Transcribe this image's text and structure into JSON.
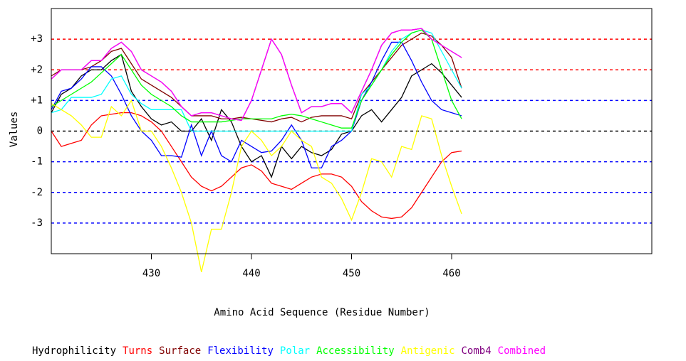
{
  "chart_data": {
    "type": "line",
    "x_label": "Amino Acid Sequence (Residue Number)",
    "y_label": "Values",
    "x": [
      420,
      421,
      422,
      423,
      424,
      425,
      426,
      427,
      428,
      429,
      430,
      431,
      432,
      433,
      434,
      435,
      436,
      437,
      438,
      439,
      440,
      441,
      442,
      443,
      444,
      445,
      446,
      447,
      448,
      449,
      450,
      451,
      452,
      453,
      454,
      455,
      456,
      457,
      458,
      459,
      460,
      461
    ],
    "xlim": [
      420,
      480
    ],
    "xticks": [
      430,
      440,
      450,
      460
    ],
    "ylim": [
      -4,
      4
    ],
    "yticks": [
      {
        "value": 3,
        "label": "+3"
      },
      {
        "value": 2,
        "label": "+2"
      },
      {
        "value": 1,
        "label": "+1"
      },
      0,
      -1,
      -2,
      -3
    ],
    "grid": true,
    "grid_colors": [
      "#ff0000",
      "#ff0000",
      "#0000ff",
      "#000000",
      "#0000ff",
      "#0000ff",
      "#0000ff"
    ],
    "series": [
      {
        "name": "Hydrophilicity",
        "color": "#000000",
        "values": [
          0.6,
          1.2,
          1.4,
          1.8,
          2.0,
          2.0,
          2.3,
          2.5,
          1.3,
          0.8,
          0.4,
          0.2,
          0.3,
          0,
          0,
          0.4,
          -0.3,
          0.7,
          0.3,
          -0.5,
          -1.0,
          -0.8,
          -1.5,
          -0.5,
          -0.9,
          -0.5,
          -0.7,
          -0.8,
          -0.6,
          -0.1,
          0,
          0.5,
          0.7,
          0.3,
          0.7,
          1.1,
          1.8,
          2.0,
          2.2,
          1.9,
          1.5,
          1.1
        ]
      },
      {
        "name": "Turns",
        "color": "#ff0000",
        "values": [
          0,
          -0.5,
          -0.4,
          -0.3,
          0.2,
          0.5,
          0.55,
          0.6,
          0.6,
          0.5,
          0.3,
          0,
          -0.5,
          -1.0,
          -1.5,
          -1.8,
          -1.95,
          -1.8,
          -1.5,
          -1.2,
          -1.1,
          -1.3,
          -1.7,
          -1.8,
          -1.9,
          -1.7,
          -1.5,
          -1.4,
          -1.4,
          -1.5,
          -1.8,
          -2.3,
          -2.6,
          -2.8,
          -2.85,
          -2.8,
          -2.5,
          -2.0,
          -1.5,
          -1.0,
          -0.7,
          -0.65
        ]
      },
      {
        "name": "Surface",
        "color": "#800000",
        "values": [
          1.8,
          2.0,
          2.0,
          2.0,
          2.1,
          2.3,
          2.6,
          2.7,
          2.2,
          1.7,
          1.5,
          1.3,
          1.1,
          0.8,
          0.5,
          0.5,
          0.5,
          0.4,
          0.4,
          0.45,
          0.4,
          0.35,
          0.3,
          0.4,
          0.45,
          0.3,
          0.45,
          0.5,
          0.5,
          0.5,
          0.4,
          1.2,
          1.6,
          2.0,
          2.4,
          2.8,
          3.0,
          3.2,
          3.1,
          2.8,
          2.4,
          1.4
        ]
      },
      {
        "name": "Flexibility",
        "color": "#0000ff",
        "values": [
          0.7,
          1.3,
          1.4,
          1.7,
          2.1,
          2.1,
          1.8,
          1.2,
          0.5,
          0,
          -0.3,
          -0.8,
          -0.8,
          -0.85,
          0.2,
          -0.8,
          0,
          -0.8,
          -1.0,
          -0.3,
          -0.5,
          -0.7,
          -0.65,
          -0.3,
          0.2,
          -0.3,
          -1.2,
          -1.2,
          -0.5,
          -0.3,
          0,
          1.0,
          1.6,
          2.3,
          2.9,
          2.9,
          2.3,
          1.6,
          1.0,
          0.7,
          0.6,
          0.5
        ]
      },
      {
        "name": "Polar",
        "color": "#00ffff",
        "values": [
          0.6,
          0.7,
          1.1,
          1.1,
          1.1,
          1.2,
          1.7,
          1.8,
          1.2,
          0.9,
          0.7,
          0.7,
          0.7,
          0.7,
          0,
          0,
          0,
          0,
          0,
          0,
          0,
          0,
          0,
          0,
          0,
          0,
          0,
          0,
          0,
          0,
          0,
          1.2,
          1.5,
          2.0,
          2.6,
          3.0,
          3.2,
          3.3,
          3.2,
          2.6,
          2.0,
          1.4
        ]
      },
      {
        "name": "Accessibility",
        "color": "#00ff00",
        "values": [
          0.8,
          1.0,
          1.2,
          1.4,
          1.6,
          1.9,
          2.2,
          2.5,
          2.0,
          1.5,
          1.2,
          1.0,
          0.8,
          0.5,
          0.3,
          0.3,
          0.3,
          0.3,
          0.35,
          0.4,
          0.4,
          0.4,
          0.4,
          0.5,
          0.55,
          0.5,
          0.4,
          0.3,
          0.2,
          0.1,
          0.1,
          1.0,
          1.5,
          2.0,
          2.5,
          2.9,
          3.2,
          3.3,
          3.0,
          2.0,
          1.0,
          0.4
        ]
      },
      {
        "name": "Antigenic",
        "color": "#ffff00",
        "values": [
          0.9,
          0.7,
          0.5,
          0.2,
          -0.2,
          -0.2,
          0.8,
          0.5,
          1.0,
          0,
          0,
          -0.5,
          -1.2,
          -2.0,
          -3.0,
          -4.6,
          -3.2,
          -3.2,
          -2.0,
          -0.5,
          0,
          -0.3,
          -0.8,
          -0.5,
          0,
          -0.3,
          -0.5,
          -1.5,
          -1.7,
          -2.2,
          -2.9,
          -2.0,
          -0.9,
          -1.0,
          -1.5,
          -0.5,
          -0.6,
          0.5,
          0.4,
          -0.8,
          -1.8,
          -2.7
        ]
      },
      {
        "name": "Comb4",
        "color": "#800080",
        "values": [
          1.7,
          2.0,
          2.0,
          2.0,
          2.3,
          2.3,
          2.7,
          2.9,
          2.6,
          2.0,
          1.8,
          1.6,
          1.3,
          0.8,
          0.5,
          0.6,
          0.6,
          0.5,
          0.4,
          0.35,
          1.0,
          2.0,
          3.0,
          2.5,
          1.5,
          0.6,
          0.8,
          0.8,
          0.9,
          0.9,
          0.6,
          1.3,
          2.0,
          2.8,
          3.2,
          3.3,
          3.3,
          3.35,
          3.0,
          2.8,
          2.6,
          2.4
        ]
      },
      {
        "name": "Combined",
        "color": "#ff00ff",
        "values": [
          1.7,
          2.0,
          2.0,
          2.0,
          2.3,
          2.3,
          2.7,
          2.9,
          2.6,
          2.0,
          1.8,
          1.6,
          1.3,
          0.8,
          0.5,
          0.6,
          0.6,
          0.5,
          0.4,
          0.35,
          1.0,
          2.0,
          3.0,
          2.5,
          1.5,
          0.6,
          0.8,
          0.8,
          0.9,
          0.9,
          0.6,
          1.3,
          2.0,
          2.8,
          3.2,
          3.3,
          3.3,
          3.35,
          3.0,
          2.8,
          2.6,
          2.4
        ]
      }
    ]
  }
}
